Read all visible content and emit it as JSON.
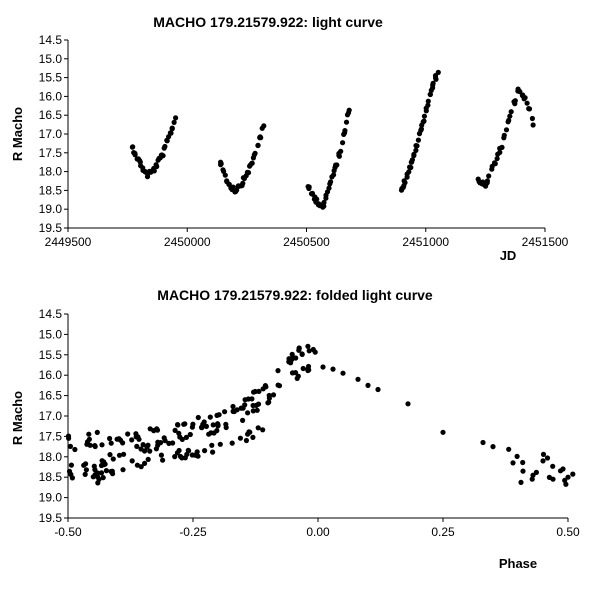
{
  "chart_data": [
    {
      "type": "scatter",
      "title": "MACHO 179.21579.922: light curve",
      "xlabel": "JD",
      "ylabel": "R Macho",
      "xlim": [
        2449500,
        2451500
      ],
      "ylim": [
        14.5,
        19.5
      ],
      "y_inverted": true,
      "grid": false,
      "x_ticks": [
        "2449500",
        "2450000",
        "2450500",
        "2451000",
        "2451500"
      ],
      "y_ticks": [
        "14.5",
        "15.0",
        "15.5",
        "16.0",
        "16.5",
        "17.0",
        "17.5",
        "18.0",
        "18.5",
        "19.0",
        "19.5"
      ],
      "segments": [
        {
          "x": [
            2449770,
            2449800,
            2449830,
            2449860,
            2449900,
            2449950
          ],
          "y": [
            17.35,
            17.75,
            18.1,
            17.95,
            17.5,
            16.6
          ]
        },
        {
          "x": [
            2450140,
            2450170,
            2450200,
            2450230,
            2450270,
            2450320
          ],
          "y": [
            17.75,
            18.3,
            18.5,
            18.3,
            17.8,
            16.8
          ]
        },
        {
          "x": [
            2450510,
            2450540,
            2450570,
            2450600,
            2450640,
            2450680
          ],
          "y": [
            18.45,
            18.75,
            18.95,
            18.3,
            17.5,
            16.3
          ]
        },
        {
          "x": [
            2450900,
            2450940,
            2450980,
            2451020,
            2451050
          ],
          "y": [
            18.45,
            17.8,
            16.9,
            15.9,
            15.35
          ]
        },
        {
          "x": [
            2451220,
            2451250,
            2451280,
            2451320,
            2451360,
            2451390,
            2451420,
            2451450
          ],
          "y": [
            18.2,
            18.4,
            17.9,
            17.3,
            16.4,
            15.8,
            16.1,
            16.7
          ]
        }
      ]
    },
    {
      "type": "scatter",
      "title": "MACHO 179.21579.922: folded light curve",
      "xlabel": "Phase",
      "ylabel": "R Macho",
      "xlim": [
        -0.5,
        0.5
      ],
      "ylim": [
        14.5,
        19.5
      ],
      "y_inverted": true,
      "grid": false,
      "x_ticks": [
        "-0.50",
        "-0.25",
        "0.00",
        "0.25",
        "0.50"
      ],
      "y_ticks": [
        "14.5",
        "15.0",
        "15.5",
        "16.0",
        "16.5",
        "17.0",
        "17.5",
        "18.0",
        "18.5",
        "19.0",
        "19.5"
      ],
      "bands": [
        {
          "x": [
            -0.5,
            -0.45,
            -0.4,
            -0.3,
            -0.2,
            -0.15,
            -0.1,
            -0.05,
            0.0
          ],
          "y": [
            18.4,
            18.2,
            18.0,
            17.6,
            17.3,
            17.0,
            16.6,
            16.0,
            15.8
          ]
        },
        {
          "x": [
            -0.5,
            -0.45,
            -0.4,
            -0.3,
            -0.2,
            -0.15,
            -0.1,
            -0.05,
            0.0
          ],
          "y": [
            17.8,
            17.7,
            17.6,
            17.3,
            17.0,
            16.7,
            16.3,
            15.5,
            15.3
          ]
        },
        {
          "x": [
            -0.45,
            -0.4,
            -0.3,
            -0.2,
            -0.15,
            -0.1
          ],
          "y": [
            18.5,
            18.3,
            18.0,
            17.8,
            17.6,
            17.2
          ]
        }
      ],
      "tail": {
        "x": [
          0.01,
          0.03,
          0.05,
          0.08,
          0.1,
          0.12,
          0.18,
          0.25,
          0.33,
          0.35
        ],
        "y": [
          15.8,
          15.85,
          15.95,
          16.1,
          16.25,
          16.35,
          16.7,
          17.4,
          17.65,
          17.75
        ]
      },
      "cluster": {
        "x": [
          0.39,
          0.41,
          0.43,
          0.45,
          0.47,
          0.49,
          0.5
        ],
        "y": [
          18.15,
          18.35,
          18.45,
          18.1,
          18.55,
          18.3,
          18.5
        ]
      }
    }
  ]
}
